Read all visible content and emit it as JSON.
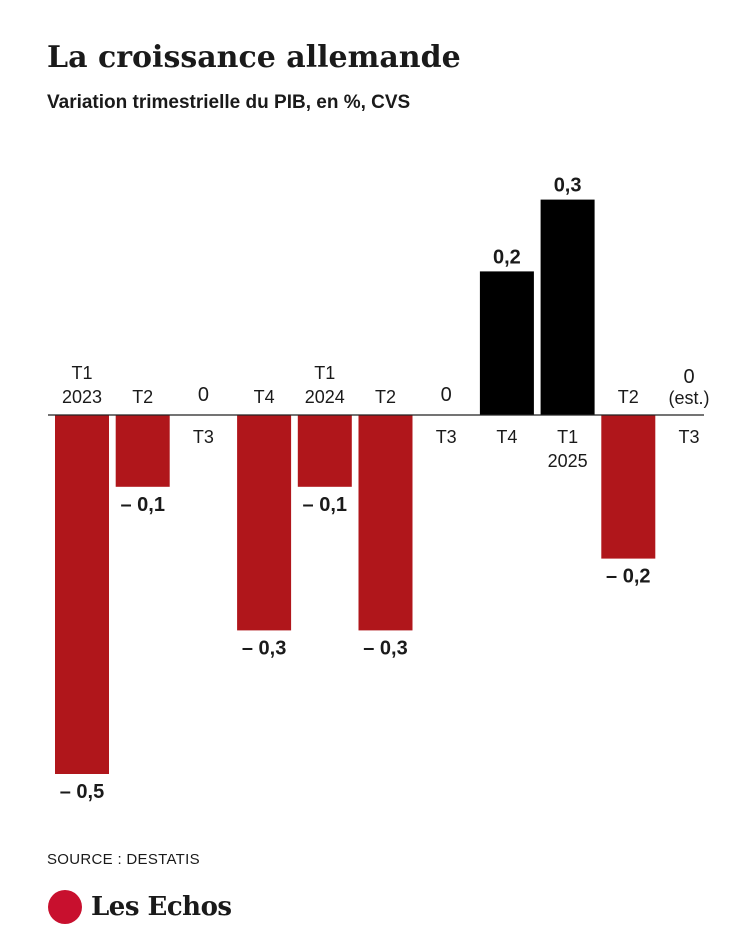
{
  "chart_data": {
    "type": "bar",
    "title": "La croissance allemande",
    "subtitle": "Variation trimestrielle du PIB, en %, CVS",
    "categories": [
      [
        "T1",
        "2023"
      ],
      [
        "T2"
      ],
      [
        "T3"
      ],
      [
        "T4"
      ],
      [
        "T1",
        "2024"
      ],
      [
        "T2"
      ],
      [
        "T3"
      ],
      [
        "T4"
      ],
      [
        "T1",
        "2025"
      ],
      [
        "T2"
      ],
      [
        "T3"
      ]
    ],
    "values": [
      -0.5,
      -0.1,
      0,
      -0.3,
      -0.1,
      -0.3,
      0,
      0.2,
      0.3,
      -0.2,
      0
    ],
    "value_labels": [
      "– 0,5",
      "– 0,1",
      "0",
      "– 0,3",
      "– 0,1",
      "– 0,3",
      "0",
      "0,2",
      "0,3",
      "– 0,2",
      "0"
    ],
    "value_label_notes": [
      "",
      "",
      "",
      "",
      "",
      "",
      "",
      "",
      "",
      "",
      "(est.)"
    ],
    "ylim": [
      -0.5,
      0.3
    ],
    "grid": false,
    "colors": {
      "positive": "#000000",
      "negative": "#b0161b",
      "axis": "#222222",
      "text": "#1a1a1a"
    }
  },
  "source": "SOURCE : DESTATIS",
  "brand": {
    "name": "Les Echos",
    "color": "#c8102e"
  }
}
